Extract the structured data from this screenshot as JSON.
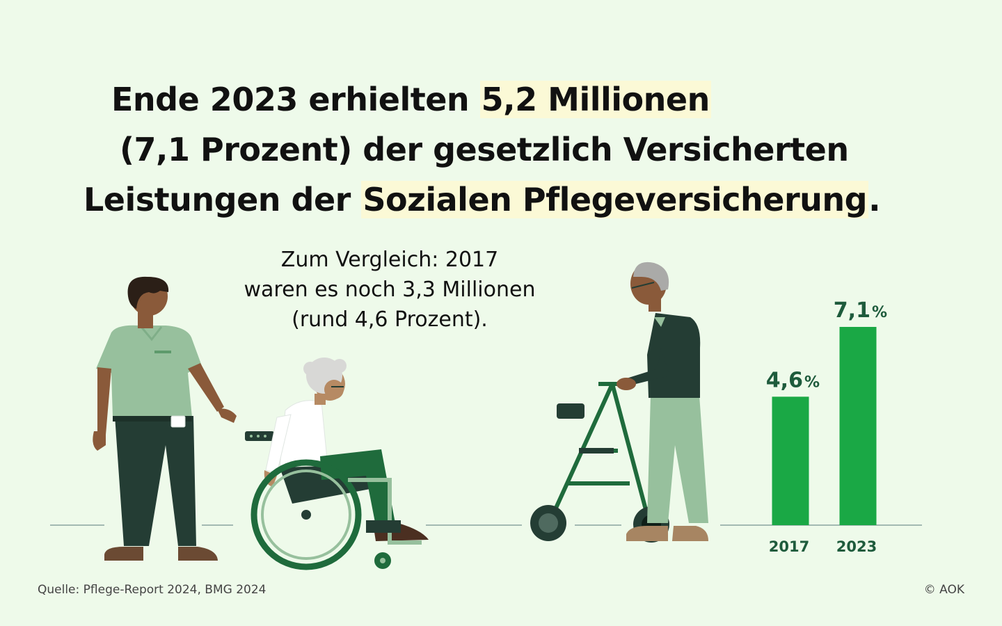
{
  "headline": {
    "line1_pre": "Ende 2023 erhielten ",
    "line1_hl": "5,2 Millionen",
    "line2": "(7,1 Prozent) der gesetzlich Versicherten",
    "line3_pre": "Leistungen der ",
    "line3_hl": "Sozialen Pflegeversicherung",
    "line3_post": "."
  },
  "comparison": {
    "line1": "Zum Vergleich: 2017",
    "line2": "waren es noch 3,3 Millionen",
    "line3": "(rund 4,6 Prozent)."
  },
  "chart_data": {
    "type": "bar",
    "categories": [
      "2017",
      "2023"
    ],
    "values": [
      4.6,
      7.1
    ],
    "value_labels": [
      "4,6",
      "7,1"
    ],
    "unit": "%",
    "title": "",
    "xlabel": "",
    "ylabel": "",
    "ylim": [
      0,
      7.1
    ],
    "grid": false,
    "bar_color": "#1aa845"
  },
  "colors": {
    "background": "#eefaea",
    "highlight": "#fbf9d6",
    "dark_green": "#1e5b3c",
    "bar_green": "#1aa845"
  },
  "footer": {
    "source": "Quelle: Pflege-Report 2024, BMG 2024",
    "copyright": "© AOK"
  }
}
